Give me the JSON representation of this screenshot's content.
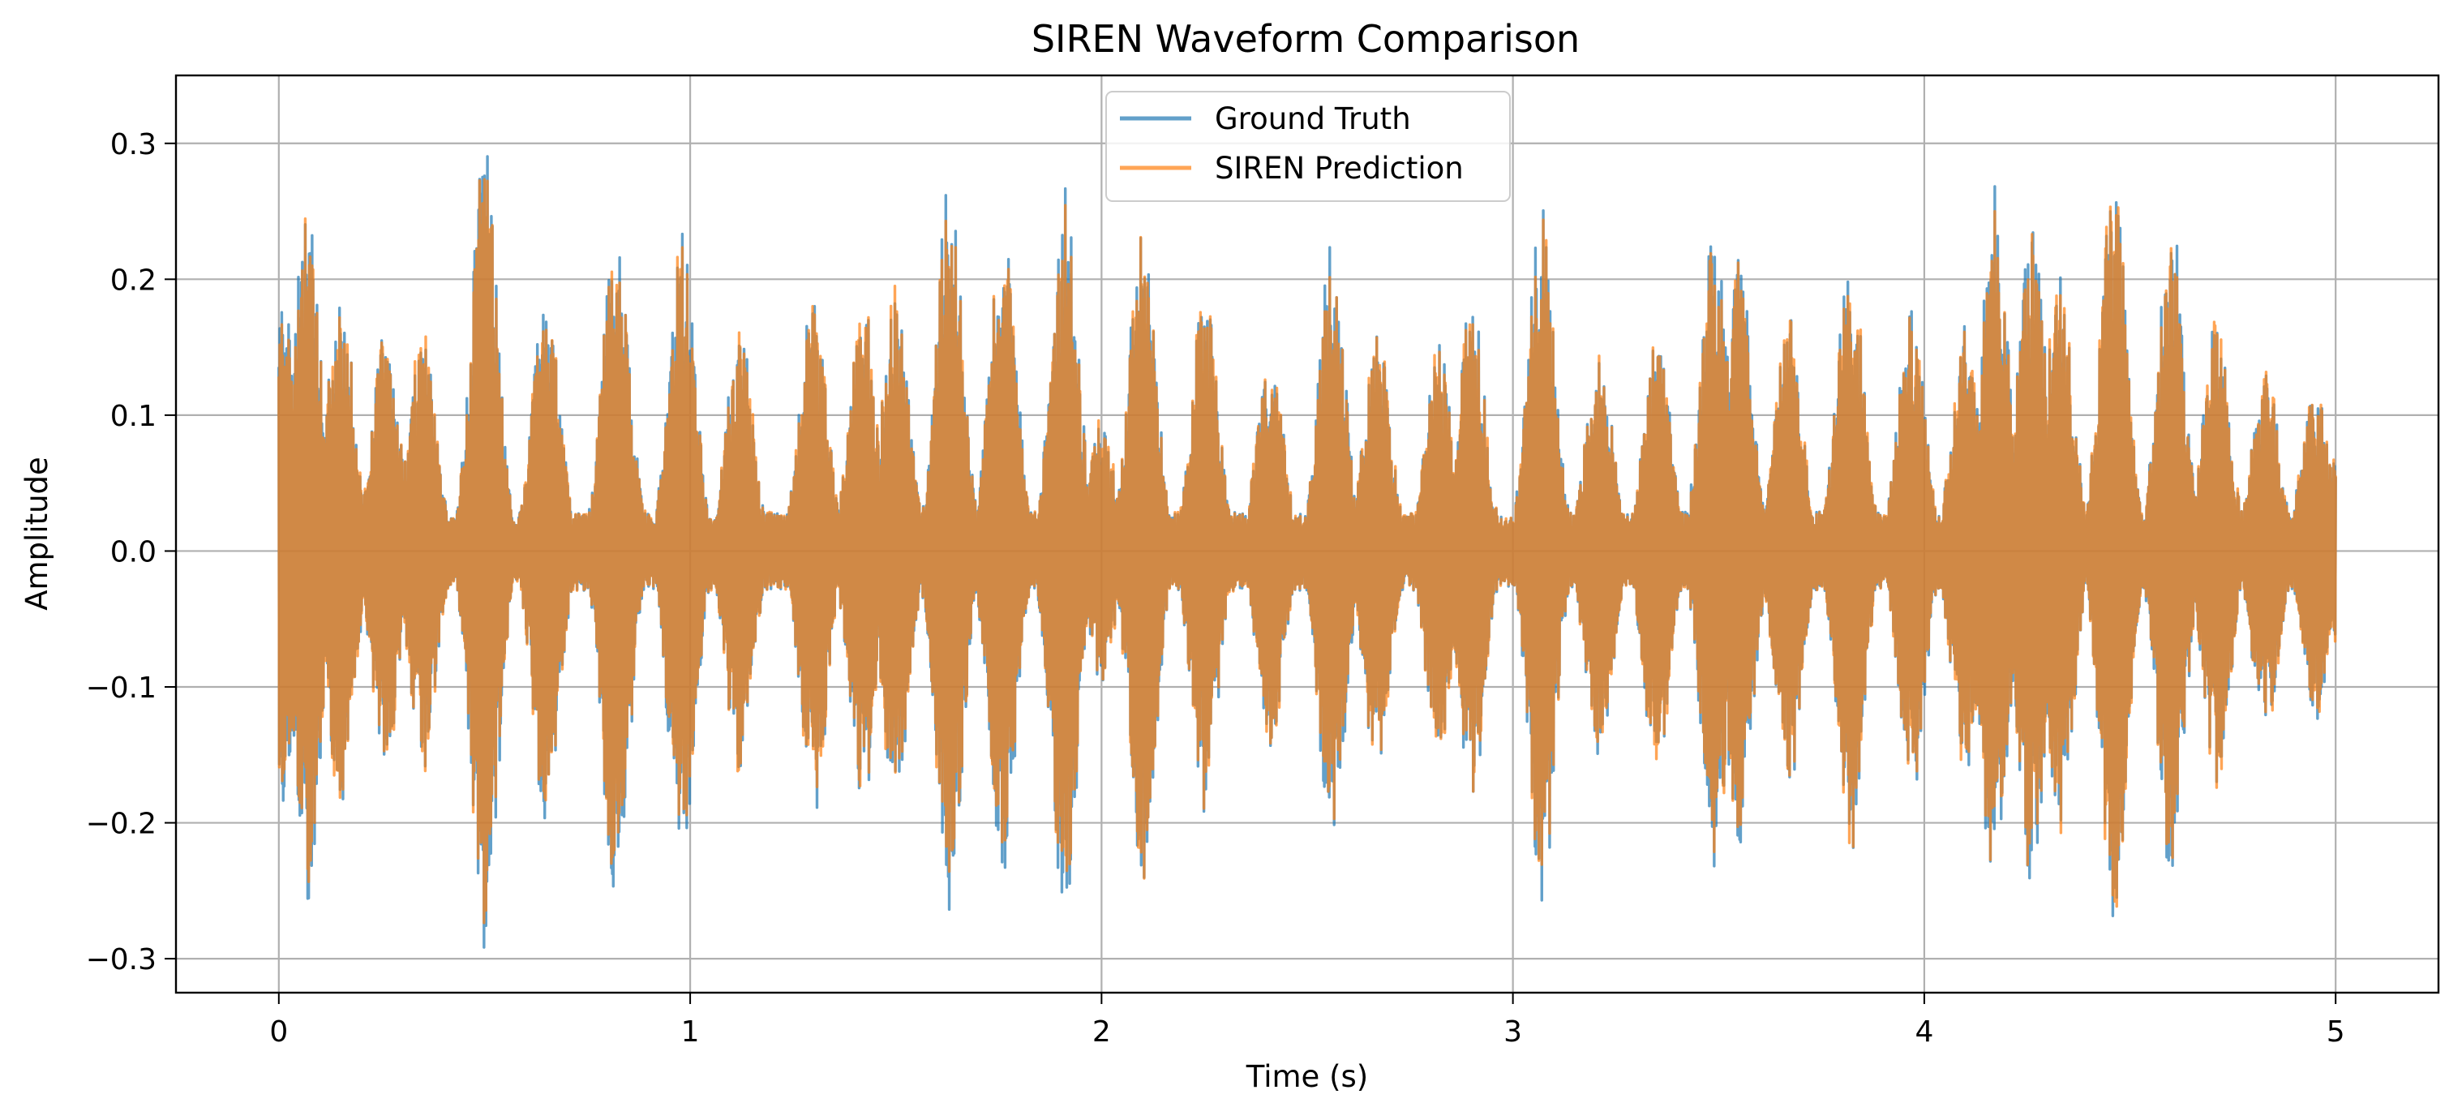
{
  "chart_data": {
    "type": "line",
    "title": "SIREN Waveform Comparison",
    "xlabel": "Time (s)",
    "ylabel": "Amplitude",
    "xlim": [
      -0.25,
      5.25
    ],
    "ylim": [
      -0.325,
      0.35
    ],
    "xticks": [
      0,
      1,
      2,
      3,
      4,
      5
    ],
    "xtick_labels": [
      "0",
      "1",
      "2",
      "3",
      "4",
      "5"
    ],
    "yticks": [
      -0.3,
      -0.2,
      -0.1,
      0.0,
      0.1,
      0.2,
      0.3
    ],
    "ytick_labels": [
      "−0.3",
      "−0.2",
      "−0.1",
      "0.0",
      "0.1",
      "0.2",
      "0.3"
    ],
    "grid": true,
    "legend_position": "top-center",
    "series": [
      {
        "name": "Ground Truth",
        "color": "#1f77b4",
        "alpha": 0.7,
        "t_range": [
          0,
          5
        ],
        "envelope_peaks": [
          {
            "t": 0.01,
            "a": 0.19
          },
          {
            "t": 0.07,
            "a": 0.26
          },
          {
            "t": 0.15,
            "a": 0.2
          },
          {
            "t": 0.26,
            "a": 0.17
          },
          {
            "t": 0.35,
            "a": 0.17
          },
          {
            "t": 0.5,
            "a": 0.31
          },
          {
            "t": 0.65,
            "a": 0.21
          },
          {
            "t": 0.82,
            "a": 0.27
          },
          {
            "t": 0.98,
            "a": 0.25
          },
          {
            "t": 1.12,
            "a": 0.17
          },
          {
            "t": 1.3,
            "a": 0.2
          },
          {
            "t": 1.42,
            "a": 0.19
          },
          {
            "t": 1.5,
            "a": 0.2
          },
          {
            "t": 1.63,
            "a": 0.28
          },
          {
            "t": 1.76,
            "a": 0.25
          },
          {
            "t": 1.91,
            "a": 0.28
          },
          {
            "t": 2.0,
            "a": 0.1
          },
          {
            "t": 2.1,
            "a": 0.26
          },
          {
            "t": 2.25,
            "a": 0.2
          },
          {
            "t": 2.41,
            "a": 0.15
          },
          {
            "t": 2.56,
            "a": 0.23
          },
          {
            "t": 2.67,
            "a": 0.17
          },
          {
            "t": 2.82,
            "a": 0.16
          },
          {
            "t": 2.9,
            "a": 0.19
          },
          {
            "t": 3.07,
            "a": 0.27
          },
          {
            "t": 3.21,
            "a": 0.16
          },
          {
            "t": 3.35,
            "a": 0.17
          },
          {
            "t": 3.49,
            "a": 0.25
          },
          {
            "t": 3.55,
            "a": 0.23
          },
          {
            "t": 3.67,
            "a": 0.18
          },
          {
            "t": 3.82,
            "a": 0.23
          },
          {
            "t": 3.97,
            "a": 0.19
          },
          {
            "t": 4.1,
            "a": 0.17
          },
          {
            "t": 4.17,
            "a": 0.28
          },
          {
            "t": 4.26,
            "a": 0.26
          },
          {
            "t": 4.33,
            "a": 0.22
          },
          {
            "t": 4.46,
            "a": 0.29
          },
          {
            "t": 4.6,
            "a": 0.25
          },
          {
            "t": 4.71,
            "a": 0.18
          },
          {
            "t": 4.83,
            "a": 0.14
          },
          {
            "t": 4.95,
            "a": 0.13
          },
          {
            "t": 5.0,
            "a": 0.07
          }
        ]
      },
      {
        "name": "SIREN Prediction",
        "color": "#ff7f0e",
        "alpha": 0.7,
        "t_range": [
          0,
          5
        ],
        "envelope_peaks": [
          {
            "t": 0.01,
            "a": 0.18
          },
          {
            "t": 0.07,
            "a": 0.25
          },
          {
            "t": 0.15,
            "a": 0.2
          },
          {
            "t": 0.26,
            "a": 0.17
          },
          {
            "t": 0.35,
            "a": 0.17
          },
          {
            "t": 0.5,
            "a": 0.3
          },
          {
            "t": 0.65,
            "a": 0.21
          },
          {
            "t": 0.82,
            "a": 0.26
          },
          {
            "t": 0.98,
            "a": 0.24
          },
          {
            "t": 1.12,
            "a": 0.17
          },
          {
            "t": 1.3,
            "a": 0.2
          },
          {
            "t": 1.42,
            "a": 0.19
          },
          {
            "t": 1.5,
            "a": 0.2
          },
          {
            "t": 1.63,
            "a": 0.27
          },
          {
            "t": 1.76,
            "a": 0.24
          },
          {
            "t": 1.91,
            "a": 0.27
          },
          {
            "t": 2.0,
            "a": 0.1
          },
          {
            "t": 2.1,
            "a": 0.25
          },
          {
            "t": 2.25,
            "a": 0.2
          },
          {
            "t": 2.41,
            "a": 0.15
          },
          {
            "t": 2.56,
            "a": 0.22
          },
          {
            "t": 2.67,
            "a": 0.17
          },
          {
            "t": 2.82,
            "a": 0.16
          },
          {
            "t": 2.9,
            "a": 0.19
          },
          {
            "t": 3.07,
            "a": 0.26
          },
          {
            "t": 3.21,
            "a": 0.16
          },
          {
            "t": 3.35,
            "a": 0.17
          },
          {
            "t": 3.49,
            "a": 0.24
          },
          {
            "t": 3.55,
            "a": 0.22
          },
          {
            "t": 3.67,
            "a": 0.18
          },
          {
            "t": 3.82,
            "a": 0.23
          },
          {
            "t": 3.97,
            "a": 0.19
          },
          {
            "t": 4.1,
            "a": 0.17
          },
          {
            "t": 4.17,
            "a": 0.27
          },
          {
            "t": 4.26,
            "a": 0.25
          },
          {
            "t": 4.33,
            "a": 0.22
          },
          {
            "t": 4.46,
            "a": 0.29
          },
          {
            "t": 4.6,
            "a": 0.24
          },
          {
            "t": 4.71,
            "a": 0.18
          },
          {
            "t": 4.83,
            "a": 0.14
          },
          {
            "t": 4.95,
            "a": 0.13
          },
          {
            "t": 5.0,
            "a": 0.07
          }
        ]
      }
    ]
  }
}
